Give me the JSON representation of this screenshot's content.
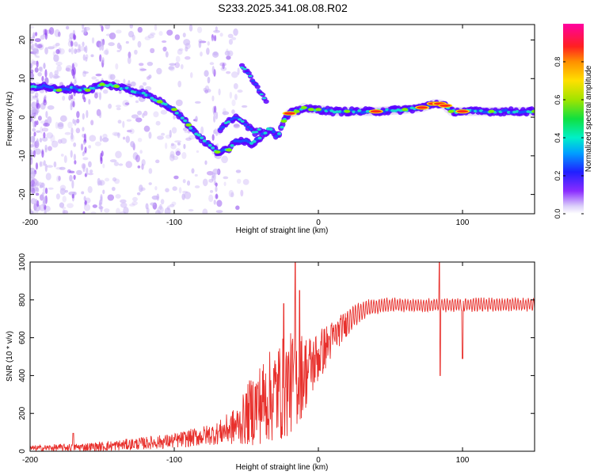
{
  "title": "S233.2025.341.08.08.R02",
  "colors": {
    "snr_line": "#e8302c",
    "track_core": "#ff2a1a",
    "track_mid": "#18e0d0",
    "track_edge": "#5a00ff",
    "haze": "#c9b2f6"
  },
  "chart_data": [
    {
      "id": "spectrogram",
      "type": "heatmap",
      "title": "S233.2025.341.08.08.R02",
      "xlabel": "Height of straight line (km)",
      "ylabel": "Frequency (Hz)",
      "xlim": [
        -200,
        150
      ],
      "ylim": [
        -25,
        24
      ],
      "xticks": [
        -200,
        -100,
        0,
        100
      ],
      "xtick_labels": [
        "-200",
        "-100",
        "0",
        "100"
      ],
      "yticks": [
        20,
        10,
        0,
        -10,
        -20
      ],
      "ytick_labels": [
        "20",
        "10",
        "0",
        "-10",
        "-20"
      ],
      "colorbar": {
        "label": "Normalized spectral amplitude",
        "ticks": [
          0.0,
          0.2,
          0.4,
          0.6,
          0.8
        ],
        "tick_labels": [
          "0.0",
          "0.2",
          "0.4",
          "0.6",
          "0.8"
        ],
        "range": [
          0,
          1
        ]
      },
      "ridge": {
        "heights_km": [
          -200,
          -190,
          -180,
          -170,
          -160,
          -150,
          -140,
          -130,
          -120,
          -110,
          -100,
          -90,
          -80,
          -70,
          -62,
          -58,
          -52,
          -46,
          -40,
          -34,
          -28,
          -24,
          -20,
          -15,
          -10,
          -5,
          0,
          10,
          20,
          40,
          60,
          72,
          80,
          84,
          88,
          92,
          100,
          120,
          150
        ],
        "frequency_hz": [
          8,
          8,
          7,
          7.5,
          7,
          8.5,
          8,
          7,
          6,
          4,
          2,
          -2,
          -6,
          -9,
          -8.5,
          -6,
          -6,
          -7,
          -5,
          -3,
          -5,
          -1,
          1,
          1.5,
          2.5,
          2,
          2,
          1.5,
          1.5,
          1.5,
          2,
          2.5,
          3.5,
          3.5,
          3,
          1.5,
          1.5,
          1.5,
          1.5
        ],
        "amplitude": [
          0.25,
          0.45,
          0.55,
          0.4,
          0.6,
          0.55,
          0.5,
          0.45,
          0.4,
          0.5,
          0.5,
          0.6,
          0.45,
          0.55,
          0.5,
          0.45,
          0.4,
          0.35,
          0.45,
          0.35,
          0.3,
          0.5,
          0.75,
          0.55,
          0.5,
          0.6,
          0.6,
          0.45,
          0.55,
          0.95,
          0.65,
          0.8,
          0.95,
          0.9,
          0.75,
          0.5,
          0.9,
          0.55,
          0.6
        ]
      },
      "secondary_branch": {
        "heights_km": [
          -68,
          -62,
          -56,
          -50,
          -44,
          -40
        ],
        "frequency_hz": [
          -3,
          -1,
          0,
          -2,
          -4,
          -3
        ]
      },
      "upper_branch": {
        "heights_km": [
          -53,
          -49,
          -45,
          -41,
          -36
        ],
        "frequency_hz": [
          13,
          11.5,
          9.5,
          7,
          4
        ]
      }
    },
    {
      "id": "snr",
      "type": "line",
      "xlabel": "Height of straight line (km)",
      "ylabel": "SNR (10 * v/v)",
      "xlim": [
        -200,
        150
      ],
      "ylim": [
        0,
        1000
      ],
      "xticks": [
        -200,
        -100,
        0,
        100
      ],
      "xtick_labels": [
        "-200",
        "-100",
        "0",
        "100"
      ],
      "yticks": [
        0,
        200,
        400,
        600,
        800,
        1000
      ],
      "ytick_labels": [
        "0",
        "200",
        "400",
        "600",
        "800",
        "1000"
      ],
      "envelope": {
        "heights_km": [
          -200,
          -150,
          -100,
          -70,
          -55,
          -45,
          -35,
          -25,
          -15,
          -5,
          5,
          15,
          25,
          35,
          50,
          70,
          100,
          150
        ],
        "snr_mean": [
          15,
          25,
          55,
          95,
          140,
          230,
          280,
          330,
          380,
          450,
          550,
          640,
          720,
          760,
          775,
          770,
          775,
          775
        ],
        "snr_spread": [
          15,
          25,
          40,
          60,
          110,
          200,
          240,
          280,
          260,
          170,
          120,
          80,
          60,
          45,
          35,
          35,
          35,
          35
        ]
      },
      "spikes": [
        {
          "height_km": -16,
          "snr": 1000
        },
        {
          "height_km": -24,
          "snr": 780
        },
        {
          "height_km": -13,
          "snr": 850
        },
        {
          "height_km": 84,
          "snr": 1000
        },
        {
          "height_km": 84.5,
          "snr": 400
        },
        {
          "height_km": 100,
          "snr": 490
        },
        {
          "height_km": -170,
          "snr": 95
        }
      ]
    }
  ]
}
